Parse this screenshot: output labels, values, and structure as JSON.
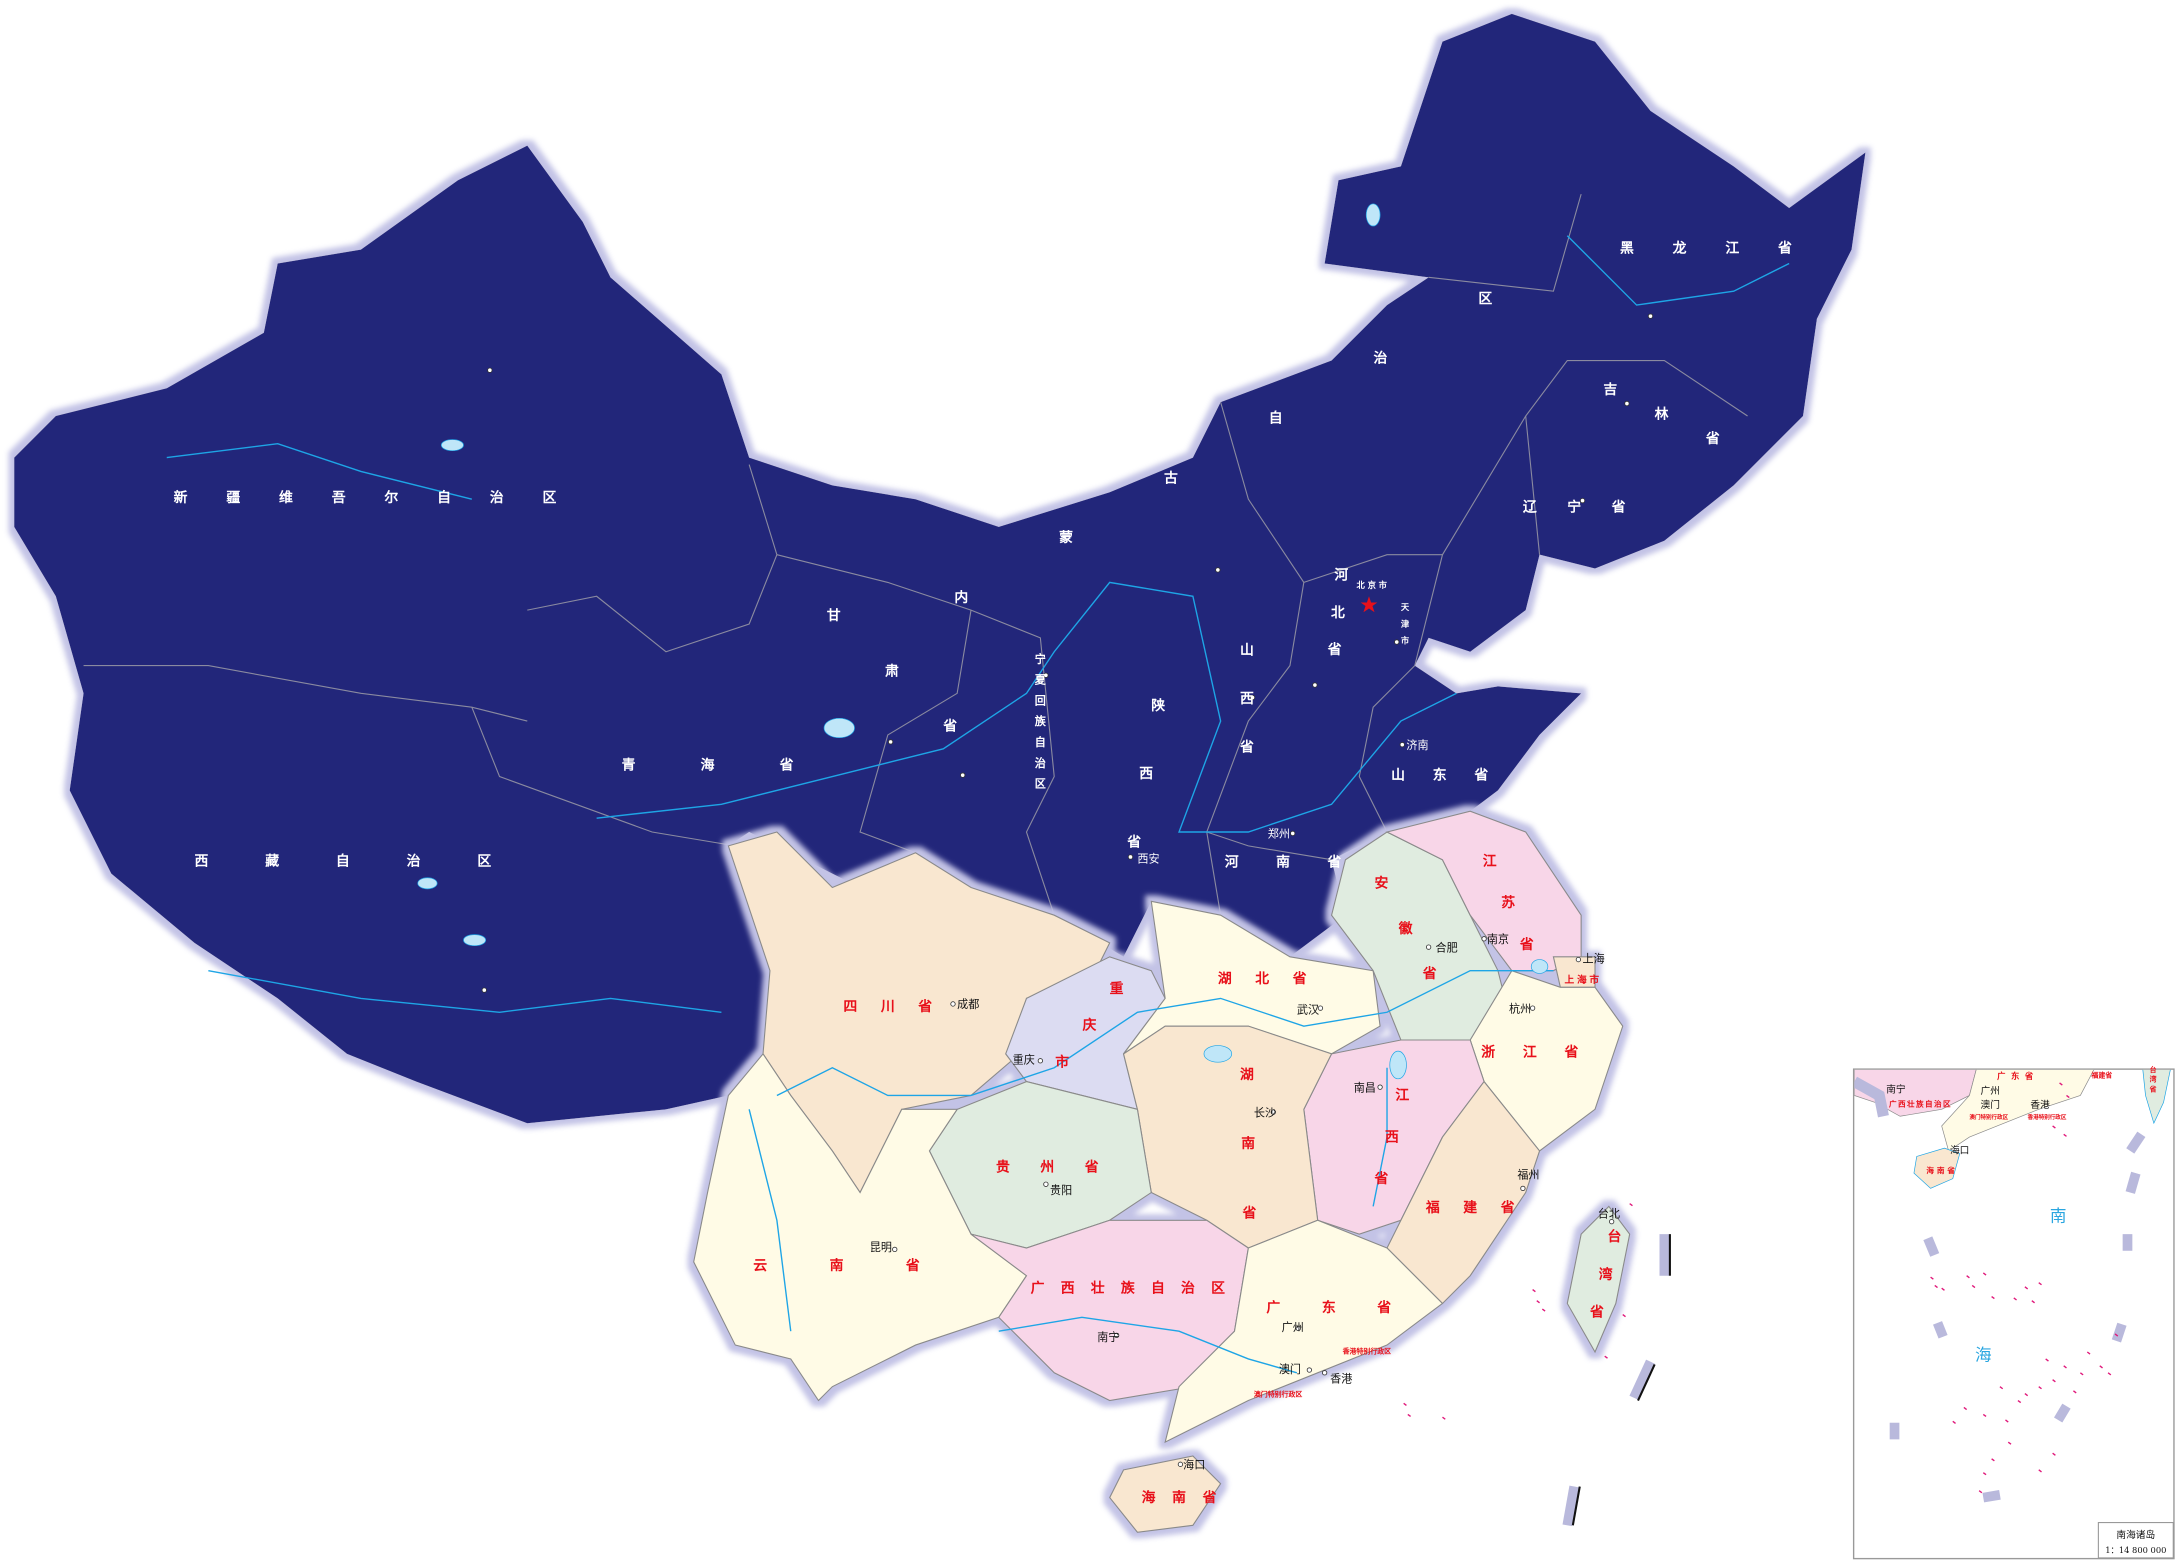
{
  "map": {
    "colors": {
      "north_fill": "#22287a",
      "border_glow": "#c3c3e6",
      "pale_yellow": "#fffbe6",
      "peach": "#f9e7d0",
      "pink": "#f8d6e8",
      "pale_green": "#e0ece0",
      "lavender": "#dcdcf2",
      "water": "#1ea5e6",
      "label_red": "#e8101a",
      "island_magenta": "#e0187a"
    },
    "capital_marker": "red-star"
  },
  "provinces": {
    "xinjiang": "新疆维吾尔自治区",
    "xizang": "西藏自治区",
    "qinghai": "青海省",
    "gansu": "甘肃省",
    "neimenggu": "内蒙古自治区",
    "heilongjiang": "黑龙江省",
    "jilin": "吉林省",
    "liaoning": "辽宁省",
    "beijing": "北京市",
    "tianjin": "天津市",
    "hebei": "河北省",
    "shanxi": "山西省",
    "shaanxi": "陕西省",
    "ningxia": "宁夏回族自治区",
    "shandong": "山东省",
    "henan": "河南省",
    "jiangsu": "江苏省",
    "anhui": "安徽省",
    "shanghai": "上海市",
    "sichuan": "四川省",
    "chongqing": "重庆市",
    "hubei": "湖北省",
    "hunan": "湖南省",
    "jiangxi": "江西省",
    "zhejiang": "浙江省",
    "fujian": "福建省",
    "guizhou": "贵州省",
    "yunnan": "云南省",
    "guangxi": "广西壮族自治区",
    "guangdong": "广东省",
    "hainan": "海南省",
    "taiwan": "台湾省",
    "hongkong_sar": "香港特别行政区",
    "macau_sar": "澳门特别行政区"
  },
  "cities": {
    "jinan": "济南",
    "zhengzhou": "郑州",
    "xian": "西安",
    "hefei": "合肥",
    "nanjing": "南京",
    "shanghai": "上海",
    "chengdu": "成都",
    "chongqing": "重庆",
    "wuhan": "武汉",
    "changsha": "长沙",
    "nanchang": "南昌",
    "hangzhou": "杭州",
    "fuzhou": "福州",
    "guiyang": "贵阳",
    "kunming": "昆明",
    "nanning": "南宁",
    "guangzhou": "广州",
    "macau": "澳门",
    "hongkong": "香港",
    "haikou": "海口",
    "taipei": "台北"
  },
  "inset": {
    "title": "南海诸岛",
    "scale": "1：14 800 000",
    "sea_char_1": "南",
    "sea_char_2": "海",
    "labels": {
      "nanning": "南宁",
      "guangxi": "广西壮族自治区",
      "guangdong": "广东省",
      "guangzhou": "广州",
      "macau": "澳门",
      "hongkong": "香港",
      "macau_sar": "澳门特别行政区",
      "hongkong_sar": "香港特别行政区",
      "fujian": "福建省",
      "taiwan": "台湾省",
      "haikou": "海口",
      "hainan": "海南省"
    }
  }
}
